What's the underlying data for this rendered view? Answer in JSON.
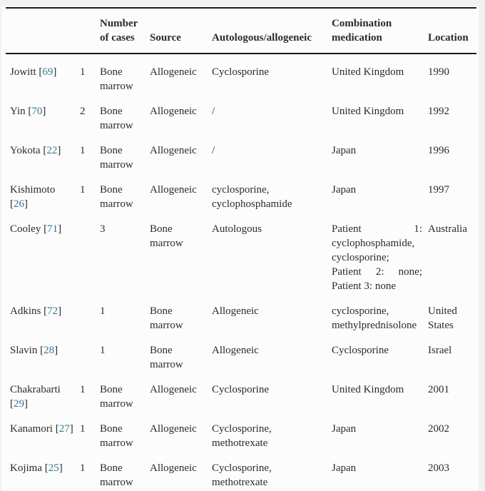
{
  "page": {
    "background_color": "#f1f1f1",
    "card_color": "#fcfcfc",
    "rule_color": "#1a1a1a",
    "text_color": "#2b2b2b",
    "link_color": "#35788f"
  },
  "table": {
    "header": [
      "",
      "",
      "Number of cases",
      "Source",
      "Autologous/allogeneic",
      "Combination medication",
      "Location"
    ],
    "rows": [
      {
        "cells": [
          {
            "text": "Jowitt",
            "ref": "69"
          },
          {
            "text": "1"
          },
          {
            "text": "Bone marrow"
          },
          {
            "text": "Allogeneic"
          },
          {
            "text": "Cyclosporine"
          },
          {
            "text": "United Kingdom"
          },
          {
            "text": "1990"
          }
        ]
      },
      {
        "cells": [
          {
            "text": "Yin",
            "ref": "70"
          },
          {
            "text": "2"
          },
          {
            "text": "Bone marrow"
          },
          {
            "text": "Allogeneic"
          },
          {
            "text": "/"
          },
          {
            "text": "United Kingdom"
          },
          {
            "text": "1992"
          }
        ]
      },
      {
        "cells": [
          {
            "text": "Yokota",
            "ref": "22"
          },
          {
            "text": "1"
          },
          {
            "text": "Bone marrow"
          },
          {
            "text": "Allogeneic"
          },
          {
            "text": "/"
          },
          {
            "text": "Japan"
          },
          {
            "text": "1996"
          }
        ]
      },
      {
        "cells": [
          {
            "text": "Kishimoto",
            "ref": "26"
          },
          {
            "text": "1"
          },
          {
            "text": "Bone marrow"
          },
          {
            "text": "Allogeneic"
          },
          {
            "text": "cyclosporine, cyclophosphamide"
          },
          {
            "text": "Japan"
          },
          {
            "text": "1997"
          }
        ]
      },
      {
        "cells": [
          {
            "text": "Cooley",
            "ref": "71"
          },
          {
            "text": ""
          },
          {
            "text": "3"
          },
          {
            "text": "Bone marrow"
          },
          {
            "text": "Autologous"
          },
          {
            "lines": [
              {
                "text": "Patient 1:",
                "justify": true
              },
              {
                "text": "cyclophosphamide,"
              },
              {
                "text": "cyclosporine;"
              },
              {
                "text": "Patient 2: none;",
                "justify": true
              },
              {
                "text": "Patient 3: none"
              }
            ]
          },
          {
            "text": "Australia"
          }
        ]
      },
      {
        "cells": [
          {
            "text": "Adkins",
            "ref": "72"
          },
          {
            "text": ""
          },
          {
            "text": "1"
          },
          {
            "text": "Bone marrow"
          },
          {
            "text": "Allogeneic"
          },
          {
            "text": "cyclosporine, methylprednisolone"
          },
          {
            "text": "United States"
          }
        ]
      },
      {
        "cells": [
          {
            "text": "Slavin",
            "ref": "28"
          },
          {
            "text": ""
          },
          {
            "text": "1"
          },
          {
            "text": "Bone marrow"
          },
          {
            "text": "Allogeneic"
          },
          {
            "text": "Cyclosporine"
          },
          {
            "text": "Israel"
          }
        ]
      },
      {
        "cells": [
          {
            "text": "Chakrabarti",
            "ref": "29"
          },
          {
            "text": "1"
          },
          {
            "text": "Bone marrow"
          },
          {
            "text": "Allogeneic"
          },
          {
            "text": "Cyclosporine"
          },
          {
            "text": "United Kingdom"
          },
          {
            "text": "2001"
          }
        ]
      },
      {
        "cells": [
          {
            "text": "Kanamori",
            "ref": "27"
          },
          {
            "text": "1"
          },
          {
            "text": "Bone marrow"
          },
          {
            "text": "Allogeneic"
          },
          {
            "text": "Cyclosporine, methotrexate"
          },
          {
            "text": "Japan"
          },
          {
            "text": "2002"
          }
        ]
      },
      {
        "cells": [
          {
            "text": "Kojima",
            "ref": "25"
          },
          {
            "text": "1"
          },
          {
            "text": "Bone marrow"
          },
          {
            "text": "Allogeneic"
          },
          {
            "text": "Cyclosporine, methotrexate"
          },
          {
            "text": "Japan"
          },
          {
            "text": "2003"
          }
        ]
      }
    ]
  }
}
